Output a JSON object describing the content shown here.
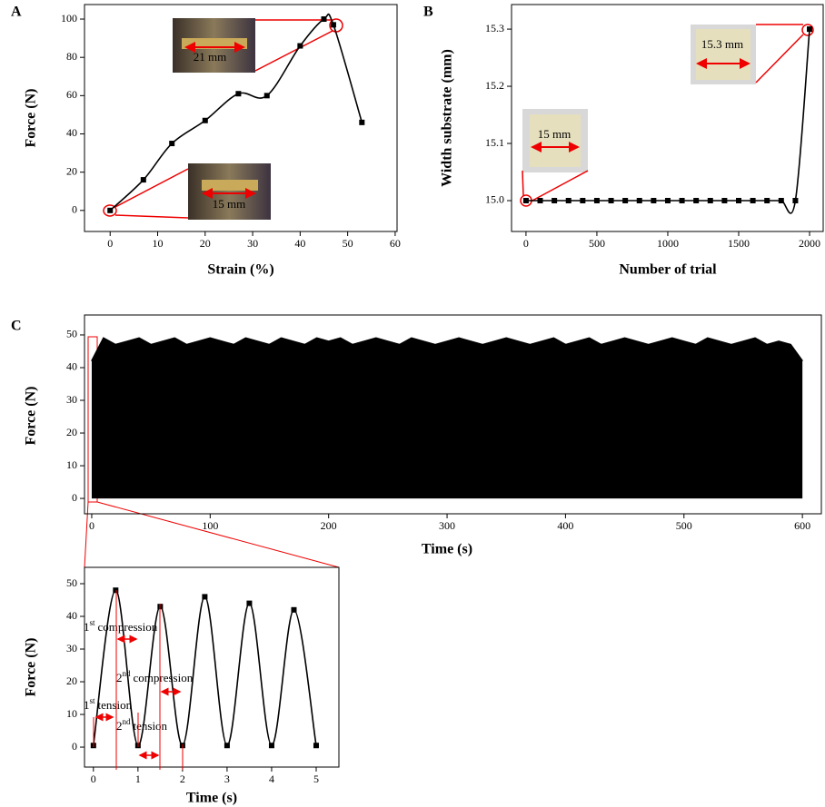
{
  "chart_data": [
    {
      "type": "line",
      "label": "A",
      "xlabel": "Strain (%)",
      "ylabel": "Force (N)",
      "x": [
        0,
        7,
        13,
        20,
        27,
        33,
        40,
        45,
        47,
        53
      ],
      "series": [
        {
          "color": "#000000",
          "values": [
            0,
            16,
            35,
            47,
            61,
            60,
            86,
            100,
            97,
            46
          ]
        }
      ],
      "xlim": [
        -5.4,
        60.4
      ],
      "ylim": [
        -11,
        107.6
      ],
      "xticks": [
        0,
        10,
        20,
        30,
        40,
        50,
        60
      ],
      "yticks": [
        0,
        20,
        40,
        60,
        80,
        100
      ],
      "annotations": [
        "21 mm",
        "15 mm"
      ]
    },
    {
      "type": "line",
      "label": "B",
      "xlabel": "Number of trial",
      "ylabel": "Width substrate (mm)",
      "x": [
        0,
        100,
        200,
        300,
        400,
        500,
        600,
        700,
        800,
        900,
        1000,
        1100,
        1200,
        1300,
        1400,
        1500,
        1600,
        1700,
        1800,
        1900,
        2000
      ],
      "series": [
        {
          "color": "#000000",
          "values": [
            15,
            15,
            15,
            15,
            15,
            15,
            15,
            15,
            15,
            15,
            15,
            15,
            15,
            15,
            15,
            15,
            15,
            15,
            15,
            15,
            15.3
          ]
        }
      ],
      "xlim": [
        -102,
        2096
      ],
      "ylim": [
        14.946,
        15.343
      ],
      "xticks": [
        0,
        500,
        1000,
        1500,
        2000
      ],
      "yticks": [
        {
          "value": 15,
          "label": "15.0"
        },
        15.1,
        15.2,
        15.3
      ],
      "annotations": [
        "15 mm",
        "15.3 mm"
      ]
    },
    {
      "type": "area",
      "label": "C",
      "xlabel": "Time (s)",
      "ylabel": "Force (N)",
      "x": [
        0,
        10,
        20,
        30,
        40,
        50,
        60,
        70,
        80,
        90,
        100,
        110,
        120,
        130,
        140,
        150,
        160,
        170,
        180,
        190,
        200,
        210,
        220,
        230,
        240,
        250,
        260,
        270,
        280,
        290,
        300,
        310,
        320,
        330,
        340,
        350,
        360,
        370,
        380,
        390,
        400,
        410,
        420,
        430,
        440,
        450,
        460,
        470,
        480,
        490,
        500,
        510,
        520,
        530,
        540,
        550,
        560,
        570,
        580,
        590,
        600
      ],
      "series": [
        {
          "color": "#000000",
          "values": [
            42,
            49,
            47,
            48,
            49,
            47,
            48,
            49,
            47,
            48,
            49,
            48,
            47,
            49,
            48,
            47,
            49,
            48,
            47,
            49,
            48,
            49,
            47,
            48,
            49,
            48,
            47,
            49,
            48,
            47,
            48,
            49,
            48,
            47,
            48,
            49,
            48,
            47,
            48,
            49,
            47,
            48,
            49,
            47,
            48,
            49,
            48,
            47,
            48,
            49,
            48,
            47,
            49,
            48,
            47,
            48,
            49,
            47,
            48,
            47,
            42
          ]
        }
      ],
      "xlim": [
        -6.1,
        616
      ],
      "ylim": [
        -4.7,
        56.1
      ],
      "xticks": [
        0,
        100,
        200,
        300,
        400,
        500,
        600
      ],
      "yticks": [
        0,
        10,
        20,
        30,
        40,
        50
      ]
    },
    {
      "type": "line",
      "xlabel": "Time (s)",
      "ylabel": "Force (N)",
      "x": [
        0,
        0.5,
        1,
        1.5,
        2,
        2.5,
        3,
        3.5,
        4,
        4.5,
        5
      ],
      "series": [
        {
          "color": "#000000",
          "values": [
            0.5,
            48,
            0.5,
            43,
            0.5,
            46,
            0.5,
            44,
            0.5,
            42,
            0.5
          ]
        }
      ],
      "xlim": [
        -0.2,
        5.51
      ],
      "ylim": [
        -6.1,
        55
      ],
      "xticks": [
        0,
        1,
        2,
        3,
        4,
        5
      ],
      "yticks": [
        0,
        10,
        20,
        30,
        40,
        50
      ],
      "annotations": [
        {
          "num": "1",
          "sup": "st",
          "text": "compression"
        },
        {
          "num": "2",
          "sup": "nd",
          "text": "compression"
        },
        {
          "num": "1",
          "sup": "st",
          "text": "tension"
        },
        {
          "num": "2",
          "sup": "nd",
          "text": "tension"
        }
      ]
    }
  ]
}
